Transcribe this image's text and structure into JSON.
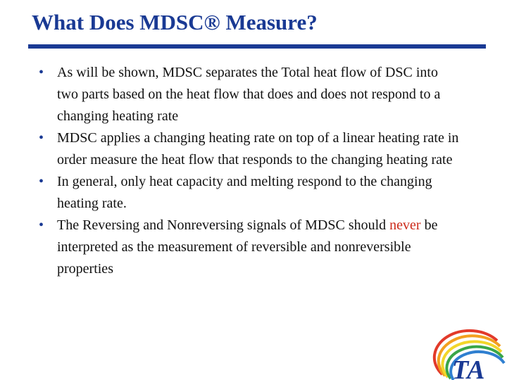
{
  "slide": {
    "title": "What Does MDSC® Measure?",
    "bullets": [
      {
        "text": "As will be shown, MDSC separates the Total heat flow of DSC into two parts based on the heat flow that does and does not respond to a changing heating rate"
      },
      {
        "text": "MDSC applies a changing heating rate on top of a linear heating rate in order measure the heat flow that responds to the changing heating rate"
      },
      {
        "text": "In general, only heat capacity and melting respond to the changing heating rate."
      },
      {
        "text_before": "The Reversing and Nonreversing signals of MDSC should ",
        "emphasis": "never",
        "text_after": " be interpreted as the measurement of reversible and nonreversible properties"
      }
    ],
    "logo": {
      "text": "TA",
      "icon": "ta-instruments-logo"
    }
  },
  "colors": {
    "title": "#1a3a94",
    "rule": "#1a3a94",
    "emphasis": "#cc2a1a",
    "body_text": "#111111"
  }
}
